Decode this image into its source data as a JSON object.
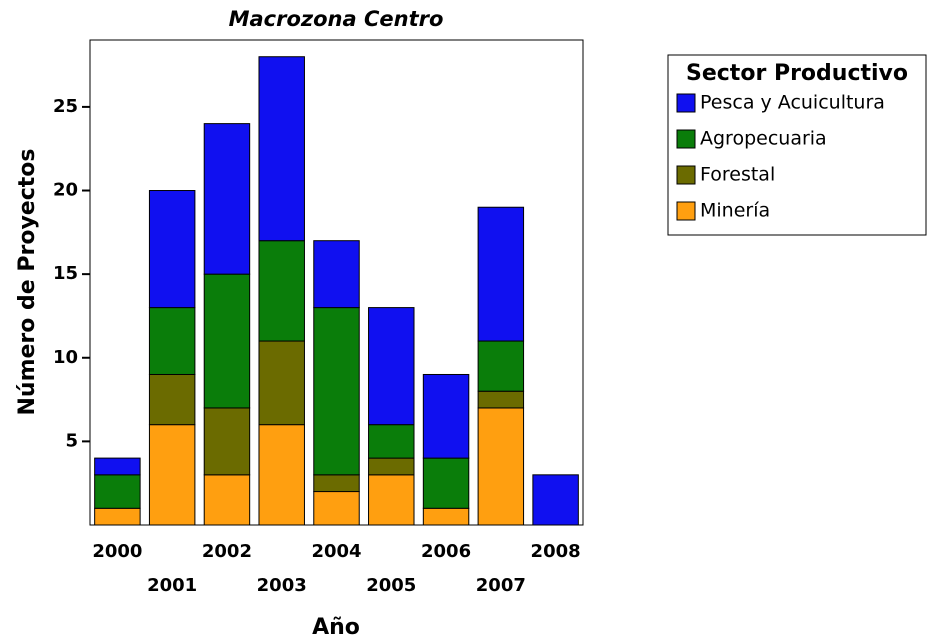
{
  "chart_data": {
    "type": "stacked_bar",
    "title": "Macrozona Centro",
    "x_label": "Año",
    "y_label": "Número de Proyectos",
    "categories": [
      "2000",
      "2001",
      "2002",
      "2003",
      "2004",
      "2005",
      "2006",
      "2007",
      "2008"
    ],
    "legend_title": "Sector Productivo",
    "series": [
      {
        "name": "Minería",
        "color": "#ff9f10",
        "values": [
          1,
          6,
          3,
          6,
          2,
          3,
          1,
          7,
          0
        ]
      },
      {
        "name": "Forestal",
        "color": "#6b6b00",
        "values": [
          0,
          3,
          4,
          5,
          1,
          1,
          0,
          1,
          0
        ]
      },
      {
        "name": "Agropecuaria",
        "color": "#0a7d0a",
        "values": [
          2,
          4,
          8,
          6,
          10,
          2,
          3,
          3,
          0
        ]
      },
      {
        "name": "Pesca y Acuicultura",
        "color": "#1010f0",
        "values": [
          1,
          7,
          9,
          11,
          4,
          7,
          5,
          8,
          3
        ]
      }
    ],
    "ylim": [
      0,
      29
    ],
    "yticks": [
      5,
      10,
      15,
      20,
      25
    ],
    "grid": false,
    "legend": "right"
  }
}
